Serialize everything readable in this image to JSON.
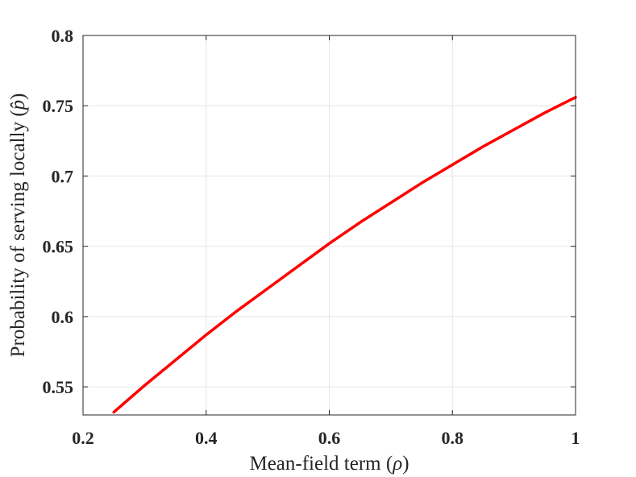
{
  "chart_data": {
    "type": "line",
    "title": "",
    "xlabel": "Mean-field term (ρ)",
    "ylabel": "Probability of serving locally (p̂)",
    "xlabel_parts": {
      "text": "Mean-field term (",
      "symbol": "ρ",
      "close": ")"
    },
    "ylabel_parts": {
      "text": "Probability of serving locally (",
      "symbol": "p̂",
      "close": ")"
    },
    "xlim": [
      0.2,
      1.0
    ],
    "ylim": [
      0.53,
      0.8
    ],
    "xticks": [
      0.2,
      0.4,
      0.6,
      0.8,
      1.0
    ],
    "xtick_labels": [
      "0.2",
      "0.4",
      "0.6",
      "0.8",
      "1"
    ],
    "yticks": [
      0.55,
      0.6,
      0.65,
      0.7,
      0.75,
      0.8
    ],
    "ytick_labels": [
      "0.55",
      "0.6",
      "0.65",
      "0.7",
      "0.75",
      "0.8"
    ],
    "grid": true,
    "legend": "none",
    "series": [
      {
        "color": "#ff0000",
        "x": [
          0.25,
          0.3,
          0.35,
          0.4,
          0.45,
          0.5,
          0.55,
          0.6,
          0.65,
          0.7,
          0.75,
          0.8,
          0.85,
          0.9,
          0.95,
          1.0
        ],
        "y": [
          0.532,
          0.551,
          0.569,
          0.587,
          0.604,
          0.62,
          0.636,
          0.652,
          0.667,
          0.681,
          0.695,
          0.708,
          0.721,
          0.733,
          0.745,
          0.756
        ]
      }
    ]
  }
}
